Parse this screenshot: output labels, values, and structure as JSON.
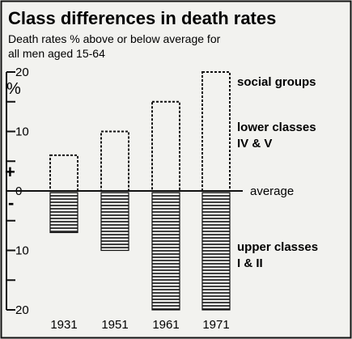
{
  "chart_data": {
    "type": "bar",
    "title": "Class differences in death rates",
    "subtitle_line1": "Death rates % above or below average for",
    "subtitle_line2": "all men aged 15-64",
    "y_unit_label": "%",
    "plus_sign": "+",
    "minus_sign": "-",
    "ylim": [
      -20,
      20
    ],
    "y_ticks": [
      {
        "value": 20,
        "label": "20"
      },
      {
        "value": 15,
        "label": ""
      },
      {
        "value": 10,
        "label": "10"
      },
      {
        "value": 5,
        "label": ""
      },
      {
        "value": 0,
        "label": "0"
      },
      {
        "value": -5,
        "label": ""
      },
      {
        "value": -10,
        "label": "10"
      },
      {
        "value": -15,
        "label": ""
      },
      {
        "value": -20,
        "label": "20"
      }
    ],
    "categories": [
      "1931",
      "1951",
      "1961",
      "1971"
    ],
    "series": [
      {
        "name": "lower classes IV & V",
        "values": [
          6,
          10,
          15,
          20
        ],
        "style": "dashed-outline"
      },
      {
        "name": "upper classes I & II",
        "values": [
          -7,
          -10,
          -20,
          -20
        ],
        "style": "hatched"
      }
    ],
    "annotations": {
      "social_groups": "social groups",
      "lower_line1": "lower classes",
      "lower_line2": "IV & V",
      "average": "average",
      "upper_line1": "upper classes",
      "upper_line2": "I & II"
    },
    "colors": {
      "ink": "#111111",
      "background": "#f2f2ef"
    }
  }
}
